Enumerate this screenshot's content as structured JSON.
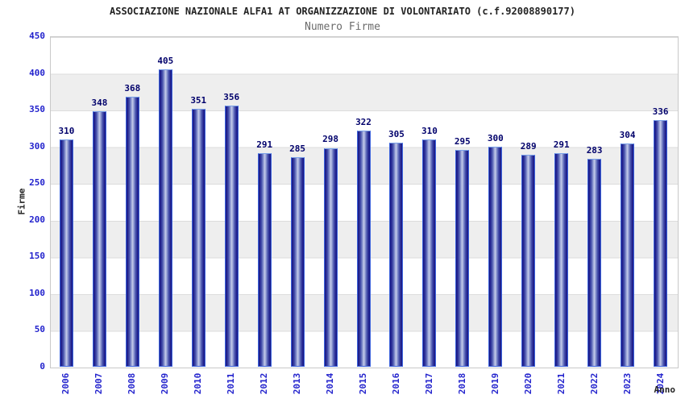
{
  "header": {
    "title": "ASSOCIAZIONE NAZIONALE ALFA1 AT ORGANIZZAZIONE DI VOLONTARIATO (c.f.92008890177)",
    "subtitle": "Numero Firme"
  },
  "chart_data": {
    "type": "bar",
    "title": "ASSOCIAZIONE NAZIONALE ALFA1 AT ORGANIZZAZIONE DI VOLONTARIATO (c.f.92008890177)",
    "subtitle": "Numero Firme",
    "xlabel": "Anno",
    "ylabel": "Firme",
    "categories": [
      "2006",
      "2007",
      "2008",
      "2009",
      "2010",
      "2011",
      "2012",
      "2013",
      "2014",
      "2015",
      "2016",
      "2017",
      "2018",
      "2019",
      "2020",
      "2021",
      "2022",
      "2023",
      "2024"
    ],
    "values": [
      310,
      348,
      368,
      405,
      351,
      356,
      291,
      285,
      298,
      322,
      305,
      310,
      295,
      300,
      289,
      291,
      283,
      304,
      336
    ],
    "ylim": [
      0,
      450
    ],
    "y_ticks": [
      450,
      400,
      350,
      300,
      250,
      200,
      150,
      100,
      50,
      0
    ],
    "grid": true,
    "legend_position": "none",
    "bands_alternating": true,
    "colors": {
      "bar_fill_dark": "#181880",
      "bar_fill_light": "#c7cdea",
      "bar_border": "#3d64dd",
      "bar_border_top": "#7ba1e8",
      "axis_tick_label": "#2323cd",
      "value_label": "#00006b",
      "title": "#232323",
      "subtitle": "#6b6b6b",
      "band_gray": "#eeeeee",
      "gridline": "#dcdcdc",
      "plot_border": "#c9c9c9"
    }
  }
}
